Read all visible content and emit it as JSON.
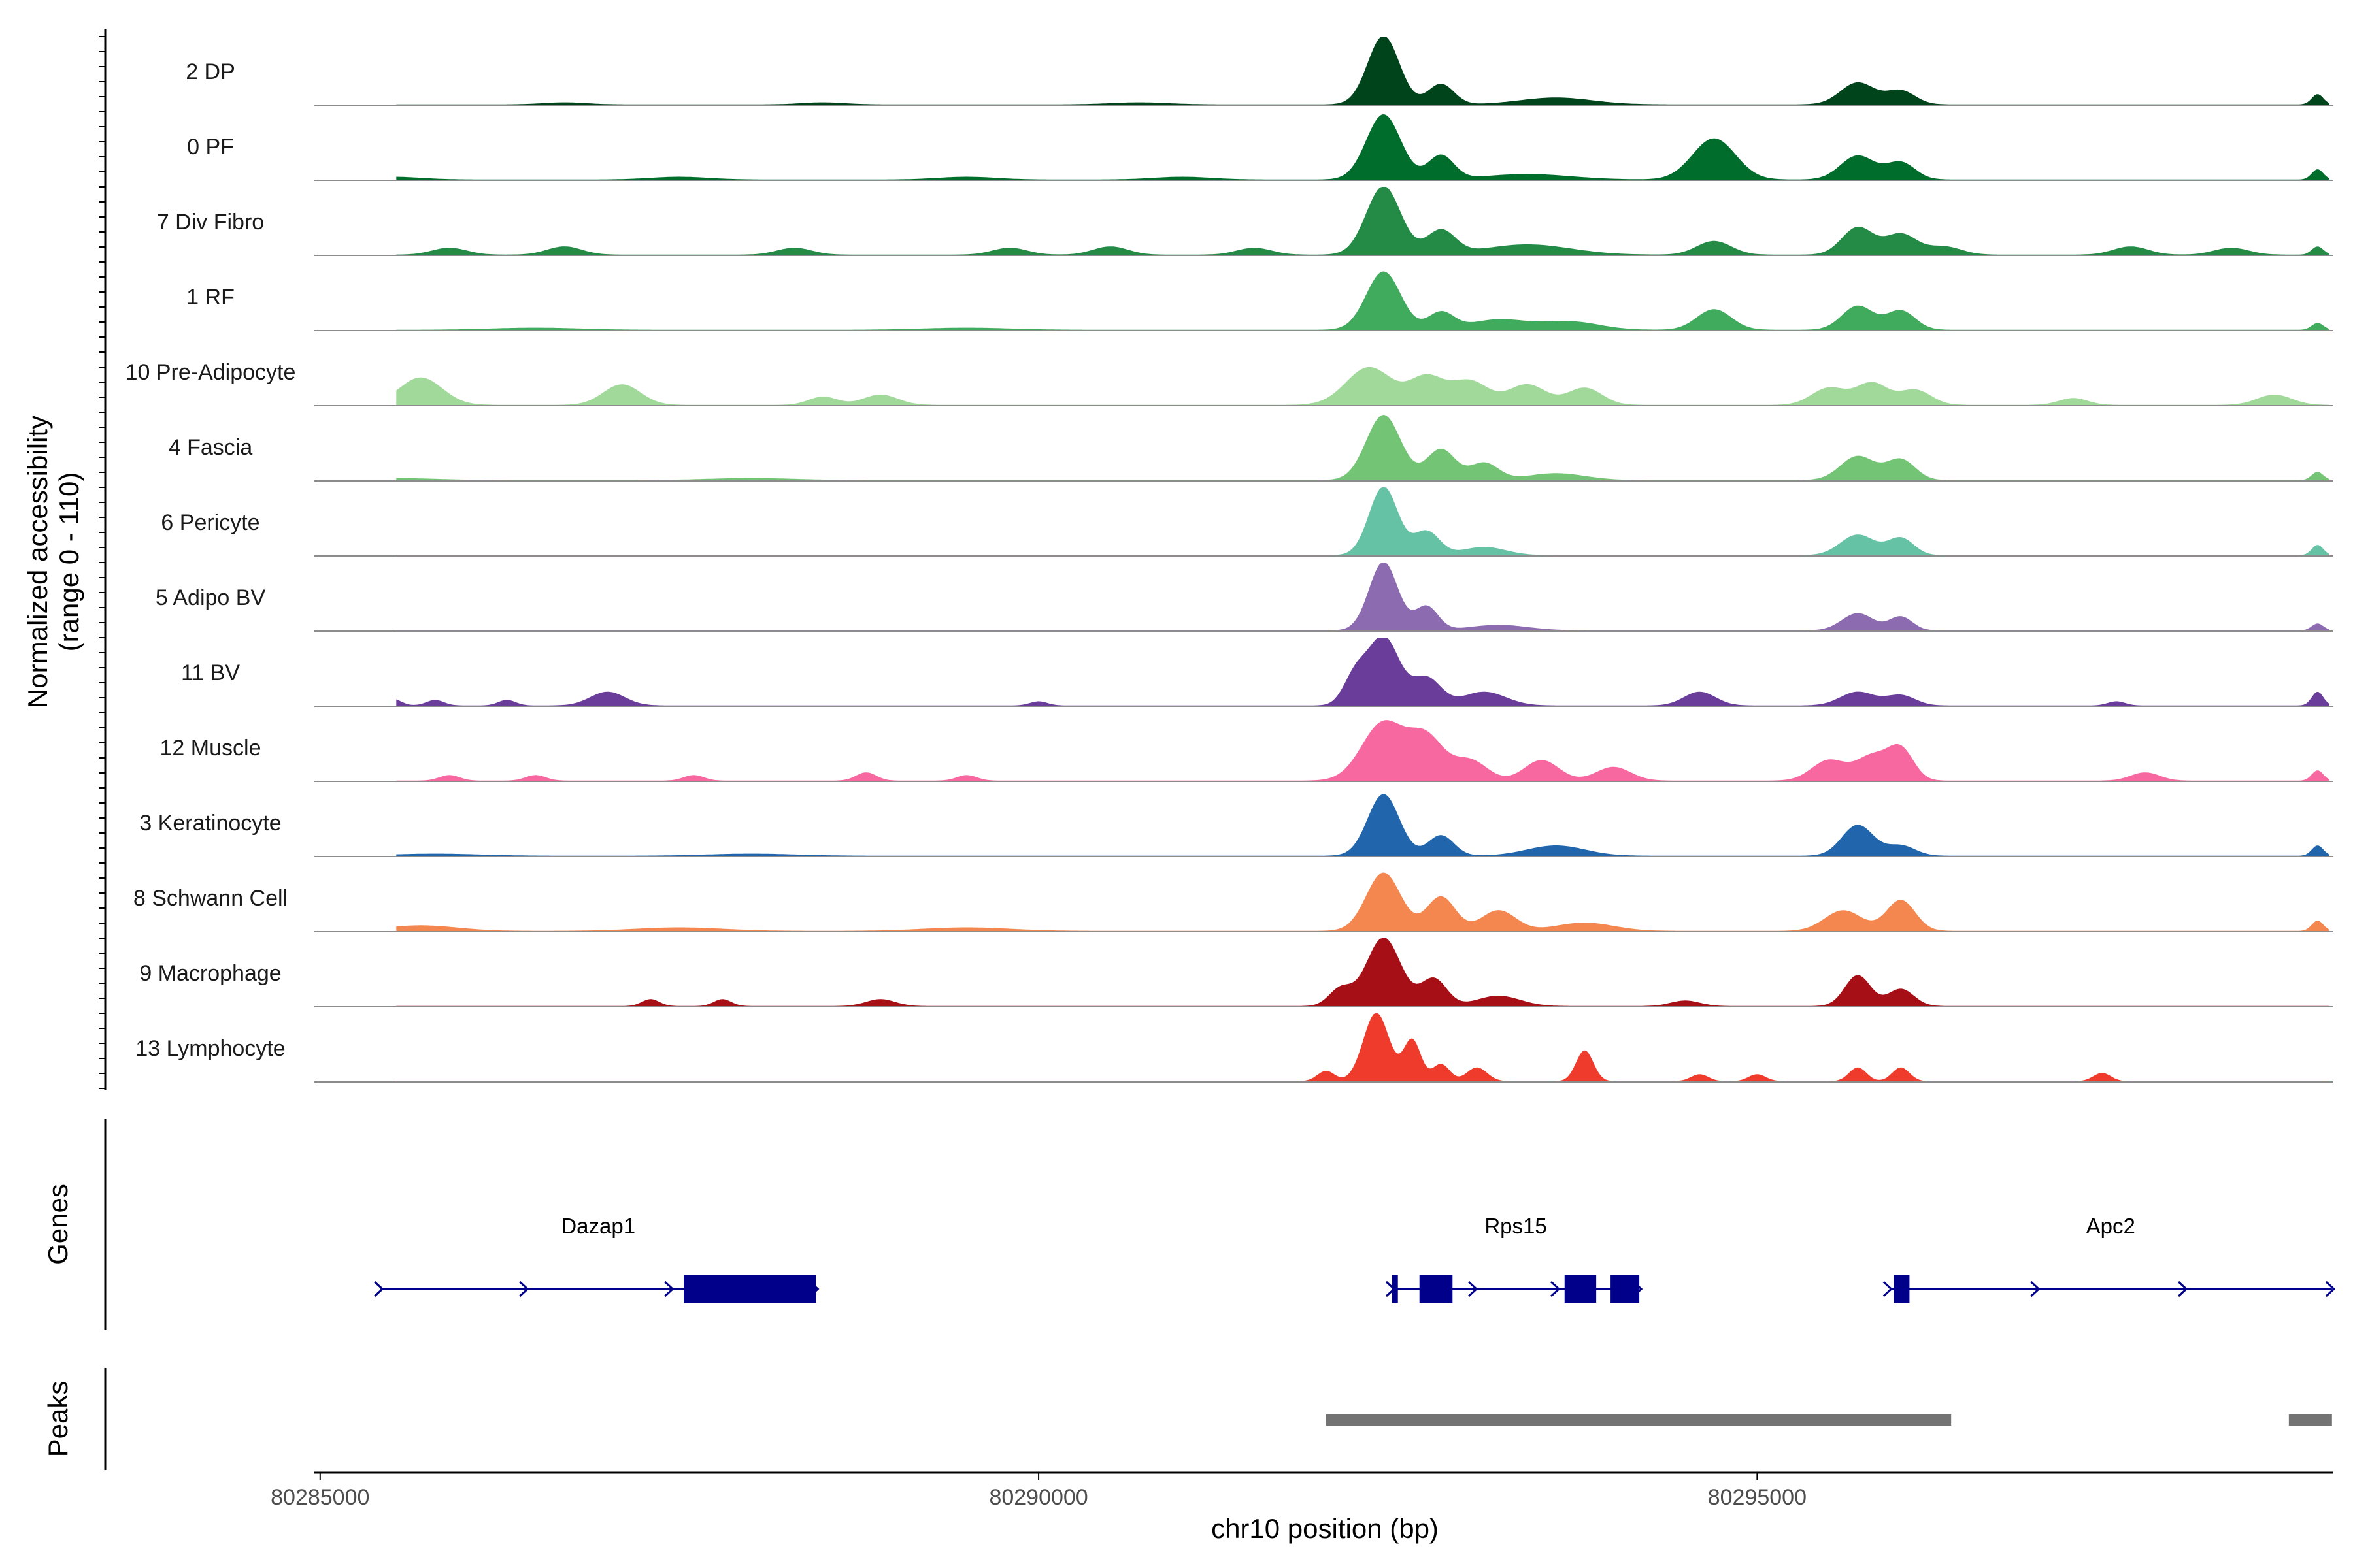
{
  "chart_data": {
    "type": "area",
    "ylabel_line1": "Normalized accessibility",
    "ylabel_line2": "(range 0 - 110)",
    "y_range": [
      0,
      110
    ],
    "xlabel": "chr10 position (bp)",
    "xlim": [
      80284960,
      80299010
    ],
    "x_ticks": [
      80285000,
      80290000,
      80295000
    ],
    "x_tick_labels": [
      "80285000",
      "80290000",
      "80295000"
    ],
    "tracks": [
      {
        "name": "2 DP",
        "color": "#00441b",
        "peaks": [
          [
            80292400,
            1.0,
            110
          ],
          [
            80292800,
            0.3,
            90
          ],
          [
            80293600,
            0.1,
            250
          ],
          [
            80295700,
            0.32,
            120
          ],
          [
            80296000,
            0.2,
            100
          ],
          [
            80298900,
            0.15,
            40
          ],
          [
            80286700,
            0.03,
            150
          ],
          [
            80288500,
            0.03,
            150
          ],
          [
            80290700,
            0.03,
            200
          ]
        ]
      },
      {
        "name": "0 PF",
        "color": "#006d2c",
        "peaks": [
          [
            80292400,
            0.95,
            120
          ],
          [
            80292800,
            0.35,
            90
          ],
          [
            80293400,
            0.08,
            300
          ],
          [
            80294700,
            0.6,
            150
          ],
          [
            80295700,
            0.35,
            120
          ],
          [
            80296000,
            0.25,
            100
          ],
          [
            80298900,
            0.15,
            40
          ],
          [
            80285500,
            0.04,
            200
          ],
          [
            80287500,
            0.04,
            200
          ],
          [
            80289500,
            0.04,
            200
          ],
          [
            80291000,
            0.04,
            200
          ]
        ]
      },
      {
        "name": "7 Div Fibro",
        "color": "#238b45",
        "peaks": [
          [
            80292400,
            1.0,
            120
          ],
          [
            80292800,
            0.35,
            100
          ],
          [
            80293400,
            0.15,
            300
          ],
          [
            80294700,
            0.2,
            120
          ],
          [
            80295700,
            0.4,
            110
          ],
          [
            80296000,
            0.3,
            110
          ],
          [
            80296300,
            0.12,
            120
          ],
          [
            80285900,
            0.1,
            120
          ],
          [
            80286700,
            0.12,
            120
          ],
          [
            80288300,
            0.1,
            120
          ],
          [
            80289800,
            0.1,
            120
          ],
          [
            80290500,
            0.12,
            120
          ],
          [
            80291500,
            0.1,
            120
          ],
          [
            80297600,
            0.12,
            120
          ],
          [
            80298300,
            0.1,
            120
          ],
          [
            80298900,
            0.12,
            40
          ]
        ]
      },
      {
        "name": "1 RF",
        "color": "#41ab5d",
        "peaks": [
          [
            80292400,
            0.85,
            120
          ],
          [
            80292800,
            0.25,
            90
          ],
          [
            80293200,
            0.15,
            200
          ],
          [
            80293700,
            0.12,
            200
          ],
          [
            80294700,
            0.3,
            120
          ],
          [
            80295700,
            0.35,
            110
          ],
          [
            80296000,
            0.28,
            100
          ],
          [
            80298900,
            0.1,
            40
          ],
          [
            80286500,
            0.03,
            300
          ],
          [
            80289500,
            0.03,
            300
          ]
        ]
      },
      {
        "name": "10 Pre-Adipocyte",
        "color": "#a1d99b",
        "peaks": [
          [
            80285700,
            0.4,
            150
          ],
          [
            80287100,
            0.3,
            130
          ],
          [
            80288500,
            0.12,
            100
          ],
          [
            80288900,
            0.15,
            120
          ],
          [
            80292300,
            0.55,
            160
          ],
          [
            80292700,
            0.4,
            120
          ],
          [
            80293000,
            0.35,
            130
          ],
          [
            80293400,
            0.3,
            130
          ],
          [
            80293800,
            0.25,
            120
          ],
          [
            80295500,
            0.25,
            120
          ],
          [
            80295800,
            0.32,
            110
          ],
          [
            80296100,
            0.22,
            110
          ],
          [
            80297200,
            0.1,
            100
          ],
          [
            80298600,
            0.15,
            120
          ]
        ]
      },
      {
        "name": "4 Fascia",
        "color": "#74c476",
        "peaks": [
          [
            80292400,
            0.95,
            120
          ],
          [
            80292800,
            0.45,
            100
          ],
          [
            80293100,
            0.25,
            100
          ],
          [
            80293600,
            0.1,
            200
          ],
          [
            80295700,
            0.35,
            120
          ],
          [
            80296000,
            0.3,
            100
          ],
          [
            80298900,
            0.12,
            40
          ],
          [
            80285500,
            0.03,
            300
          ],
          [
            80288000,
            0.03,
            300
          ]
        ]
      },
      {
        "name": "6 Pericyte",
        "color": "#66c2a4",
        "peaks": [
          [
            80292400,
            1.0,
            100
          ],
          [
            80292700,
            0.35,
            90
          ],
          [
            80293100,
            0.12,
            150
          ],
          [
            80295700,
            0.3,
            120
          ],
          [
            80296000,
            0.25,
            90
          ],
          [
            80298900,
            0.15,
            40
          ]
        ]
      },
      {
        "name": "5 Adipo BV",
        "color": "#8c6bb1",
        "peaks": [
          [
            80292400,
            1.0,
            100
          ],
          [
            80292700,
            0.35,
            80
          ],
          [
            80293200,
            0.08,
            200
          ],
          [
            80295700,
            0.25,
            110
          ],
          [
            80296000,
            0.2,
            80
          ],
          [
            80298900,
            0.1,
            40
          ]
        ]
      },
      {
        "name": "11 BV",
        "color": "#6a3d9a",
        "peaks": [
          [
            80292400,
            1.0,
            110
          ],
          [
            80292700,
            0.4,
            100
          ],
          [
            80292200,
            0.4,
            80
          ],
          [
            80293100,
            0.2,
            150
          ],
          [
            80294600,
            0.2,
            110
          ],
          [
            80295700,
            0.2,
            120
          ],
          [
            80296000,
            0.15,
            100
          ],
          [
            80285500,
            0.1,
            60
          ],
          [
            80285800,
            0.08,
            60
          ],
          [
            80286300,
            0.08,
            60
          ],
          [
            80287000,
            0.2,
            120
          ],
          [
            80290000,
            0.06,
            60
          ],
          [
            80298900,
            0.2,
            40
          ],
          [
            80297500,
            0.06,
            60
          ]
        ]
      },
      {
        "name": "12 Muscle",
        "color": "#f768a1",
        "peaks": [
          [
            80292400,
            0.85,
            150
          ],
          [
            80292700,
            0.6,
            120
          ],
          [
            80293000,
            0.3,
            120
          ],
          [
            80293500,
            0.3,
            120
          ],
          [
            80294000,
            0.2,
            120
          ],
          [
            80295500,
            0.3,
            120
          ],
          [
            80295800,
            0.35,
            110
          ],
          [
            80296000,
            0.45,
            90
          ],
          [
            80285900,
            0.08,
            70
          ],
          [
            80286500,
            0.08,
            70
          ],
          [
            80287600,
            0.08,
            70
          ],
          [
            80288800,
            0.12,
            70
          ],
          [
            80289500,
            0.08,
            70
          ],
          [
            80297700,
            0.12,
            100
          ],
          [
            80298900,
            0.15,
            40
          ]
        ]
      },
      {
        "name": "3 Keratinocyte",
        "color": "#2166ac",
        "peaks": [
          [
            80292400,
            0.9,
            110
          ],
          [
            80292800,
            0.3,
            90
          ],
          [
            80293600,
            0.15,
            200
          ],
          [
            80295700,
            0.45,
            110
          ],
          [
            80296000,
            0.15,
            100
          ],
          [
            80298900,
            0.15,
            40
          ],
          [
            80285800,
            0.03,
            300
          ],
          [
            80288000,
            0.03,
            300
          ]
        ]
      },
      {
        "name": "8 Schwann Cell",
        "color": "#f4874f",
        "peaks": [
          [
            80292400,
            0.85,
            120
          ],
          [
            80292800,
            0.5,
            100
          ],
          [
            80293200,
            0.3,
            120
          ],
          [
            80293800,
            0.12,
            200
          ],
          [
            80295600,
            0.3,
            130
          ],
          [
            80296000,
            0.45,
            100
          ],
          [
            80285700,
            0.08,
            250
          ],
          [
            80287500,
            0.05,
            300
          ],
          [
            80289500,
            0.05,
            300
          ],
          [
            80298900,
            0.15,
            40
          ]
        ]
      },
      {
        "name": "9 Macrophage",
        "color": "#a50f15",
        "peaks": [
          [
            80292400,
            1.0,
            120
          ],
          [
            80292750,
            0.4,
            90
          ],
          [
            80292100,
            0.25,
            80
          ],
          [
            80293200,
            0.15,
            150
          ],
          [
            80295700,
            0.45,
            90
          ],
          [
            80296000,
            0.25,
            90
          ],
          [
            80287300,
            0.1,
            60
          ],
          [
            80287800,
            0.1,
            60
          ],
          [
            80288900,
            0.1,
            100
          ],
          [
            80294500,
            0.08,
            100
          ]
        ]
      },
      {
        "name": "13 Lymphocyte",
        "color": "#ef3b2c",
        "peaks": [
          [
            80292350,
            1.0,
            90
          ],
          [
            80292600,
            0.6,
            60
          ],
          [
            80292800,
            0.25,
            60
          ],
          [
            80293050,
            0.2,
            70
          ],
          [
            80293800,
            0.45,
            60
          ],
          [
            80292000,
            0.15,
            60
          ],
          [
            80294600,
            0.1,
            60
          ],
          [
            80295000,
            0.1,
            60
          ],
          [
            80295700,
            0.2,
            60
          ],
          [
            80296000,
            0.2,
            60
          ],
          [
            80297400,
            0.12,
            60
          ]
        ]
      }
    ],
    "genes_panel_label": "Genes",
    "genes": [
      {
        "name": "Dazap1",
        "start": 80285420,
        "end": 80288450,
        "strand": "+",
        "exons": [
          [
            80287530,
            80288450
          ]
        ]
      },
      {
        "name": "Rps15",
        "start": 80292460,
        "end": 80294180,
        "strand": "+",
        "exons": [
          [
            80292460,
            80292500
          ],
          [
            80292650,
            80292880
          ],
          [
            80293660,
            80293880
          ],
          [
            80293980,
            80294180
          ]
        ]
      },
      {
        "name": "Apc2",
        "start": 80295920,
        "end": 80299000,
        "strand": "+",
        "exons": [
          [
            80295950,
            80296060
          ]
        ]
      }
    ],
    "gene_color": "#00008b",
    "peaks_panel_label": "Peaks",
    "peak_regions": [
      [
        80292000,
        80296350
      ],
      [
        80298700,
        80299000
      ]
    ],
    "peak_color": "#737373"
  }
}
